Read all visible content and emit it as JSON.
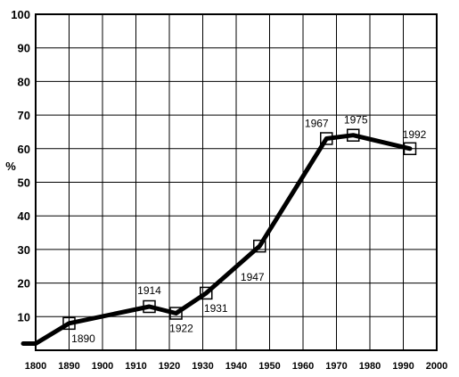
{
  "chart_data": {
    "type": "line",
    "title": "",
    "xlabel": "",
    "ylabel": "%",
    "xlim": [
      1800,
      2000
    ],
    "ylim": [
      0,
      100
    ],
    "grid": true,
    "x_ticks": [
      "1800",
      "1890",
      "1900",
      "1910",
      "1920",
      "1930",
      "1940",
      "1950",
      "1960",
      "1970",
      "1980",
      "1990",
      "2000"
    ],
    "y_ticks": [
      "10",
      "20",
      "30",
      "40",
      "50",
      "60",
      "70",
      "80",
      "90",
      "100"
    ],
    "series": [
      {
        "values": [
          {
            "x": "1800",
            "y": 2
          },
          {
            "x": "1890",
            "y": 8
          },
          {
            "x": "1914",
            "y": 13
          },
          {
            "x": "1922",
            "y": 11
          },
          {
            "x": "1931",
            "y": 17
          },
          {
            "x": "1947",
            "y": 31
          },
          {
            "x": "1967",
            "y": 63
          },
          {
            "x": "1975",
            "y": 64
          },
          {
            "x": "1992",
            "y": 60
          }
        ]
      }
    ],
    "annotations": [
      {
        "text": "1890",
        "x": "1890",
        "y": 8
      },
      {
        "text": "1914",
        "x": "1914",
        "y": 13
      },
      {
        "text": "1922",
        "x": "1922",
        "y": 11
      },
      {
        "text": "1931",
        "x": "1931",
        "y": 17
      },
      {
        "text": "1947",
        "x": "1947",
        "y": 31
      },
      {
        "text": "1967",
        "x": "1967",
        "y": 63
      },
      {
        "text": "1975",
        "x": "1975",
        "y": 64
      },
      {
        "text": "1992",
        "x": "1992",
        "y": 60
      }
    ]
  }
}
